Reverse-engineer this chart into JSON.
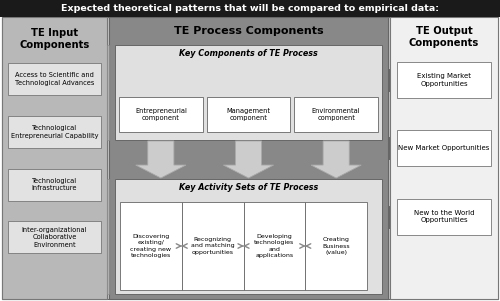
{
  "title": "Expected theoretical patterns that will be compared to empirical data:",
  "title_bg": "#1a1a1a",
  "title_color": "#ffffff",
  "bg_color": "#ffffff",
  "outer_border": "#555555",
  "input_bg": "#b0b0b0",
  "input_border": "#777777",
  "process_bg": "#888888",
  "process_panel_bg": "#e0e0e0",
  "output_bg": "#f5f5f5",
  "output_border": "#777777",
  "white_box": "#ffffff",
  "input_title": "TE Input\nComponents",
  "output_title": "TE Output\nComponents",
  "process_title": "TE Process Components",
  "key_components_title": "Key Components of TE Process",
  "key_activity_title": "Key Activity Sets of TE Process",
  "input_components": [
    "Access to Scientific and\nTechnological Advances",
    "Technological\nEntrepreneurial Capability",
    "Technological\nInfrastructure",
    "Inter-organizational\nCollaborative\nEnvironment"
  ],
  "key_components": [
    "Entrepreneurial\ncomponent",
    "Management\ncomponent",
    "Environmental\ncomponent"
  ],
  "key_activities": [
    "Discovering\nexisting/\ncreating new\ntechnologies",
    "Recognizing\nand matching\nopportunities",
    "Developing\ntechnologies\nand\napplications",
    "Creating\nBusiness\n(value)"
  ],
  "output_boxes": [
    "Existing Market\nOpportunities",
    "New Market Opportunities",
    "New to the World\nOpportunities"
  ],
  "arrow_fc": "#909090",
  "arrow_ec": "#666666",
  "down_arrow_fc": "#cccccc",
  "down_arrow_ec": "#999999"
}
